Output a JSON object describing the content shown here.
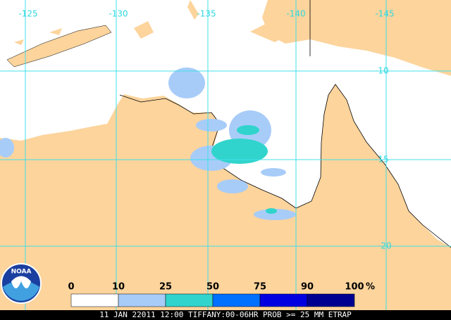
{
  "map": {
    "lon_labels": [
      "-125",
      "-130",
      "-135",
      "-140",
      "-145"
    ],
    "lat_labels": [
      "-10",
      "-15",
      "-20"
    ],
    "legend": {
      "ticks": [
        "0",
        "10",
        "25",
        "50",
        "75",
        "90",
        "100"
      ],
      "unit": "%",
      "colors": [
        "#ffffff",
        "#a8ccf8",
        "#30d4cc",
        "#0070ff",
        "#0000e0",
        "#000090"
      ]
    },
    "logo": "NOAA",
    "footer": "11 JAN 22011 12:00 TIFFANY:00-06HR PROB >= 25 MM ETRAP"
  }
}
